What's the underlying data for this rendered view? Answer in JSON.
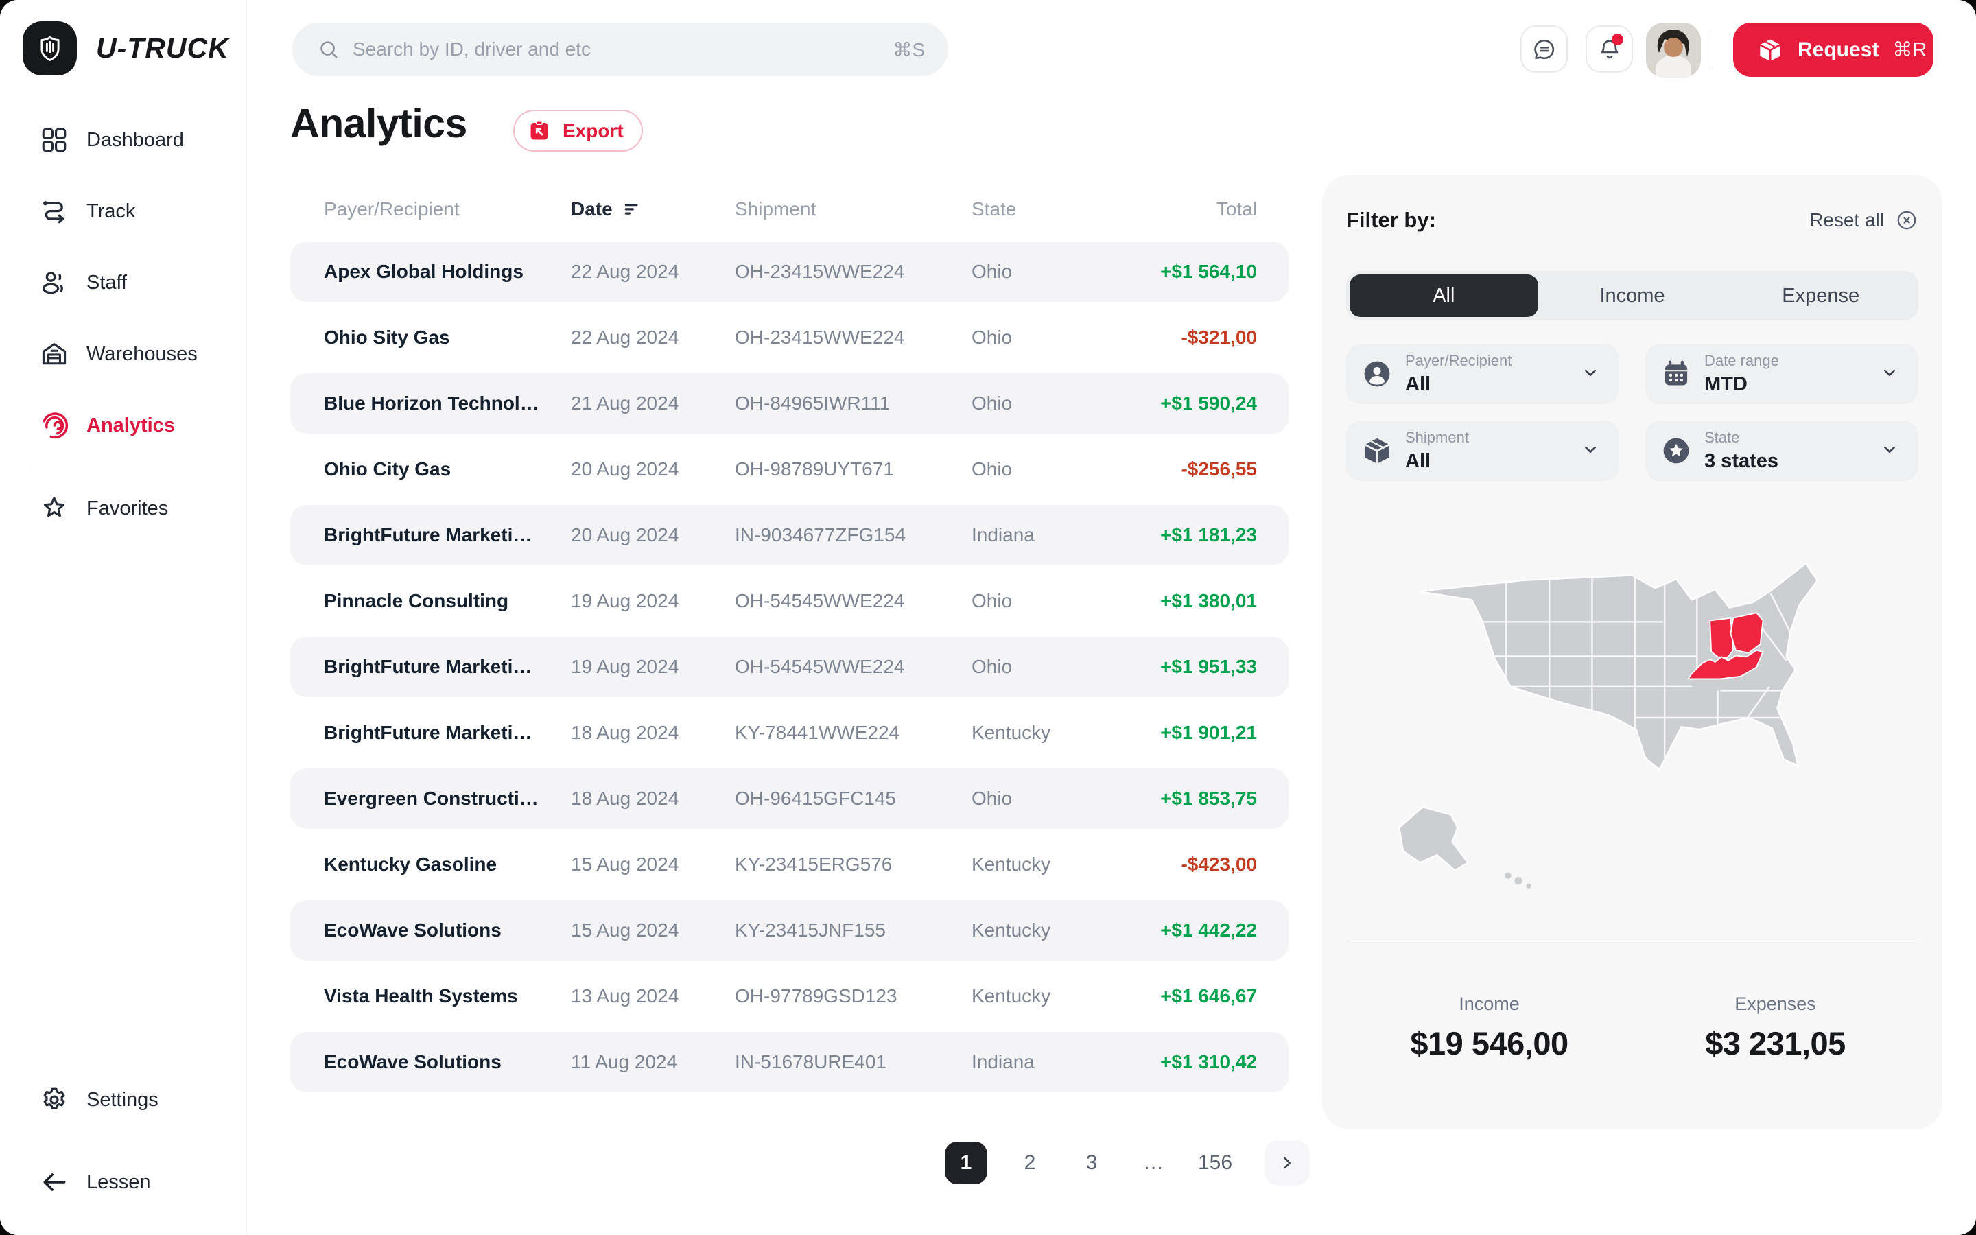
{
  "brand": {
    "name": "U-TRUCK"
  },
  "topbar": {
    "search_placeholder": "Search by ID, driver and etc",
    "search_shortcut": "⌘S",
    "request_label": "Request",
    "request_shortcut": "⌘R"
  },
  "sidebar": {
    "items": [
      {
        "label": "Dashboard",
        "icon": "dashboard",
        "active": false
      },
      {
        "label": "Track",
        "icon": "track",
        "active": false
      },
      {
        "label": "Staff",
        "icon": "staff",
        "active": false
      },
      {
        "label": "Warehouses",
        "icon": "warehouse",
        "active": false
      },
      {
        "label": "Analytics",
        "icon": "analytics",
        "active": true,
        "divider_after": true
      },
      {
        "label": "Favorites",
        "icon": "star",
        "active": false
      }
    ],
    "settings_label": "Settings",
    "collapse_label": "Lessen"
  },
  "page": {
    "title": "Analytics",
    "export_label": "Export"
  },
  "table": {
    "headers": {
      "payer": "Payer/Recipient",
      "date": "Date",
      "shipment": "Shipment",
      "state": "State",
      "total": "Total"
    },
    "rows": [
      {
        "payer": "Apex Global Holdings",
        "date": "22 Aug 2024",
        "shipment": "OH-23415WWE224",
        "state": "Ohio",
        "total": "+$1 564,10",
        "type": "income"
      },
      {
        "payer": "Ohio Sity Gas",
        "date": "22 Aug 2024",
        "shipment": "OH-23415WWE224",
        "state": "Ohio",
        "total": "-$321,00",
        "type": "expense"
      },
      {
        "payer": "Blue Horizon Technol…",
        "date": "21 Aug 2024",
        "shipment": "OH-84965IWR111",
        "state": "Ohio",
        "total": "+$1 590,24",
        "type": "income"
      },
      {
        "payer": "Ohio City Gas",
        "date": "20 Aug 2024",
        "shipment": "OH-98789UYT671",
        "state": "Ohio",
        "total": "-$256,55",
        "type": "expense"
      },
      {
        "payer": "BrightFuture Marketi…",
        "date": "20 Aug 2024",
        "shipment": "IN-9034677ZFG154",
        "state": "Indiana",
        "total": "+$1 181,23",
        "type": "income"
      },
      {
        "payer": "Pinnacle Consulting",
        "date": "19 Aug 2024",
        "shipment": "OH-54545WWE224",
        "state": "Ohio",
        "total": "+$1 380,01",
        "type": "income"
      },
      {
        "payer": "BrightFuture Marketi…",
        "date": "19 Aug 2024",
        "shipment": "OH-54545WWE224",
        "state": "Ohio",
        "total": "+$1 951,33",
        "type": "income"
      },
      {
        "payer": "BrightFuture Marketi…",
        "date": "18 Aug 2024",
        "shipment": "KY-78441WWE224",
        "state": "Kentucky",
        "total": "+$1 901,21",
        "type": "income"
      },
      {
        "payer": "Evergreen Constructi…",
        "date": "18 Aug 2024",
        "shipment": "OH-96415GFC145",
        "state": "Ohio",
        "total": "+$1 853,75",
        "type": "income"
      },
      {
        "payer": "Kentucky Gasoline",
        "date": "15 Aug 2024",
        "shipment": "KY-23415ERG576",
        "state": "Kentucky",
        "total": "-$423,00",
        "type": "expense"
      },
      {
        "payer": "EcoWave Solutions",
        "date": "15 Aug 2024",
        "shipment": "KY-23415JNF155",
        "state": "Kentucky",
        "total": "+$1 442,22",
        "type": "income"
      },
      {
        "payer": "Vista Health Systems",
        "date": "13 Aug 2024",
        "shipment": "OH-97789GSD123",
        "state": "Kentucky",
        "total": "+$1 646,67",
        "type": "income"
      },
      {
        "payer": "EcoWave Solutions",
        "date": "11 Aug 2024",
        "shipment": "IN-51678URE401",
        "state": "Indiana",
        "total": "+$1 310,42",
        "type": "income"
      }
    ]
  },
  "pagination": {
    "pages": [
      "1",
      "2",
      "3",
      "…",
      "156"
    ],
    "active_page": "1"
  },
  "filters": {
    "title": "Filter by:",
    "reset_label": "Reset all",
    "tabs": [
      {
        "label": "All",
        "active": true
      },
      {
        "label": "Income",
        "active": false
      },
      {
        "label": "Expense",
        "active": false
      }
    ],
    "dropdowns": [
      {
        "label": "Payer/Recipient",
        "value": "All",
        "icon": "user-circle"
      },
      {
        "label": "Date range",
        "value": "MTD",
        "icon": "calendar"
      },
      {
        "label": "Shipment",
        "value": "All",
        "icon": "package"
      },
      {
        "label": "State",
        "value": "3 states",
        "icon": "star-circle"
      }
    ]
  },
  "map": {
    "highlighted_states": [
      "Indiana",
      "Ohio",
      "Kentucky"
    ]
  },
  "summary": {
    "income_label": "Income",
    "income_value": "$19 546,00",
    "expenses_label": "Expenses",
    "expenses_value": "$3 231,05"
  },
  "colors": {
    "accent": "#E81C3C",
    "income": "#00A14D",
    "expense": "#C43A20",
    "map_highlight": "#F02540"
  }
}
